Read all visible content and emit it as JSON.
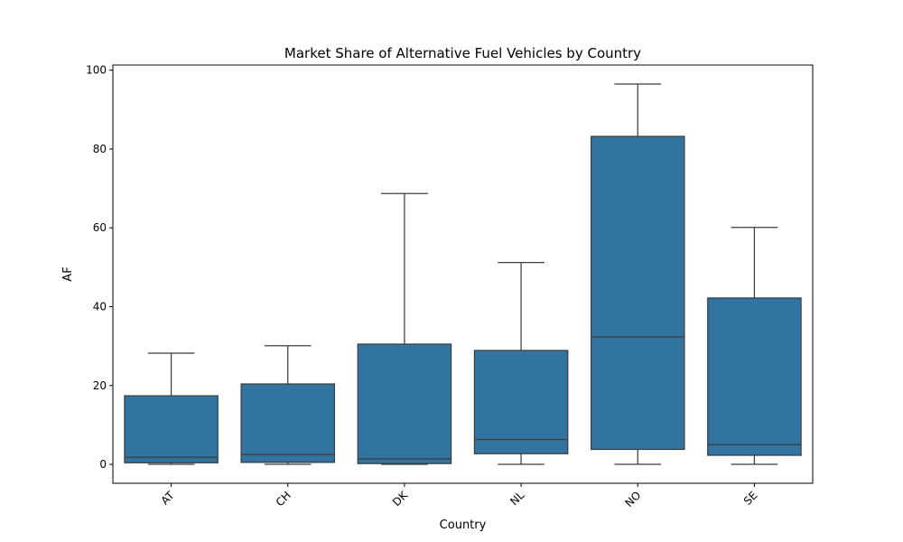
{
  "chart_data": {
    "type": "box",
    "title": "Market Share of Alternative Fuel Vehicles by Country",
    "xlabel": "Country",
    "ylabel": "AF",
    "ylim": [
      -4.8,
      101.3
    ],
    "yticks": [
      0,
      20,
      40,
      60,
      80,
      100
    ],
    "grid": false,
    "legend": "none",
    "box_color": "#3274a1",
    "line_color": "#3d3d3d",
    "categories": [
      "AT",
      "CH",
      "DK",
      "NL",
      "NO",
      "SE"
    ],
    "boxes": [
      {
        "category": "AT",
        "whisker_low": 0.0,
        "q1": 0.4,
        "median": 1.8,
        "q3": 17.4,
        "whisker_high": 28.2
      },
      {
        "category": "CH",
        "whisker_low": 0.0,
        "q1": 0.5,
        "median": 2.5,
        "q3": 20.4,
        "whisker_high": 30.1
      },
      {
        "category": "DK",
        "whisker_low": 0.0,
        "q1": 0.2,
        "median": 1.4,
        "q3": 30.5,
        "whisker_high": 68.7
      },
      {
        "category": "NL",
        "whisker_low": 0.0,
        "q1": 2.7,
        "median": 6.3,
        "q3": 28.9,
        "whisker_high": 51.2
      },
      {
        "category": "NO",
        "whisker_low": 0.0,
        "q1": 3.8,
        "median": 32.3,
        "q3": 83.2,
        "whisker_high": 96.5
      },
      {
        "category": "SE",
        "whisker_low": 0.0,
        "q1": 2.3,
        "median": 5.0,
        "q3": 42.2,
        "whisker_high": 60.1
      }
    ]
  }
}
